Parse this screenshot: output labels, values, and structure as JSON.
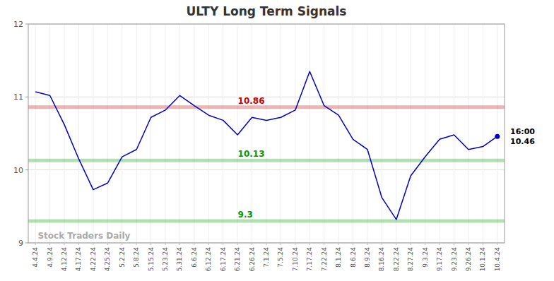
{
  "chart_data": {
    "type": "line",
    "title": "ULTY Long Term Signals",
    "categories": [
      "4.4.24",
      "4.9.24",
      "4.12.24",
      "4.17.24",
      "4.22.24",
      "4.25.24",
      "5.2.24",
      "5.8.24",
      "5.15.24",
      "5.23.24",
      "5.31.24",
      "6.6.24",
      "6.12.24",
      "6.17.24",
      "6.21.24",
      "6.26.24",
      "7.1.24",
      "7.5.24",
      "7.10.24",
      "7.17.24",
      "7.22.24",
      "8.1.24",
      "8.6.24",
      "8.9.24",
      "8.16.24",
      "8.22.24",
      "8.27.24",
      "9.3.24",
      "9.17.24",
      "9.23.24",
      "9.26.24",
      "10.1.24",
      "10.4.24"
    ],
    "values": [
      11.07,
      11.02,
      10.62,
      10.15,
      9.73,
      9.82,
      10.18,
      10.28,
      10.72,
      10.82,
      11.02,
      10.88,
      10.75,
      10.68,
      10.48,
      10.72,
      10.68,
      10.72,
      10.82,
      11.35,
      10.88,
      10.75,
      10.42,
      10.28,
      9.62,
      9.32,
      9.92,
      10.18,
      10.42,
      10.48,
      10.28,
      10.32,
      10.46
    ],
    "color": "#0000cc",
    "ylim": [
      9,
      12
    ],
    "yticks": [
      9,
      10,
      11,
      12
    ],
    "grid": true,
    "reference_lines": [
      {
        "value": 10.86,
        "color": "#cc0000"
      },
      {
        "value": 10.13,
        "color": "#009900"
      },
      {
        "value": 9.3,
        "color": "#009900"
      }
    ],
    "annotations": [
      {
        "text": "16:00",
        "value": 10.46
      }
    ],
    "watermark": "Stock Traders Daily"
  }
}
